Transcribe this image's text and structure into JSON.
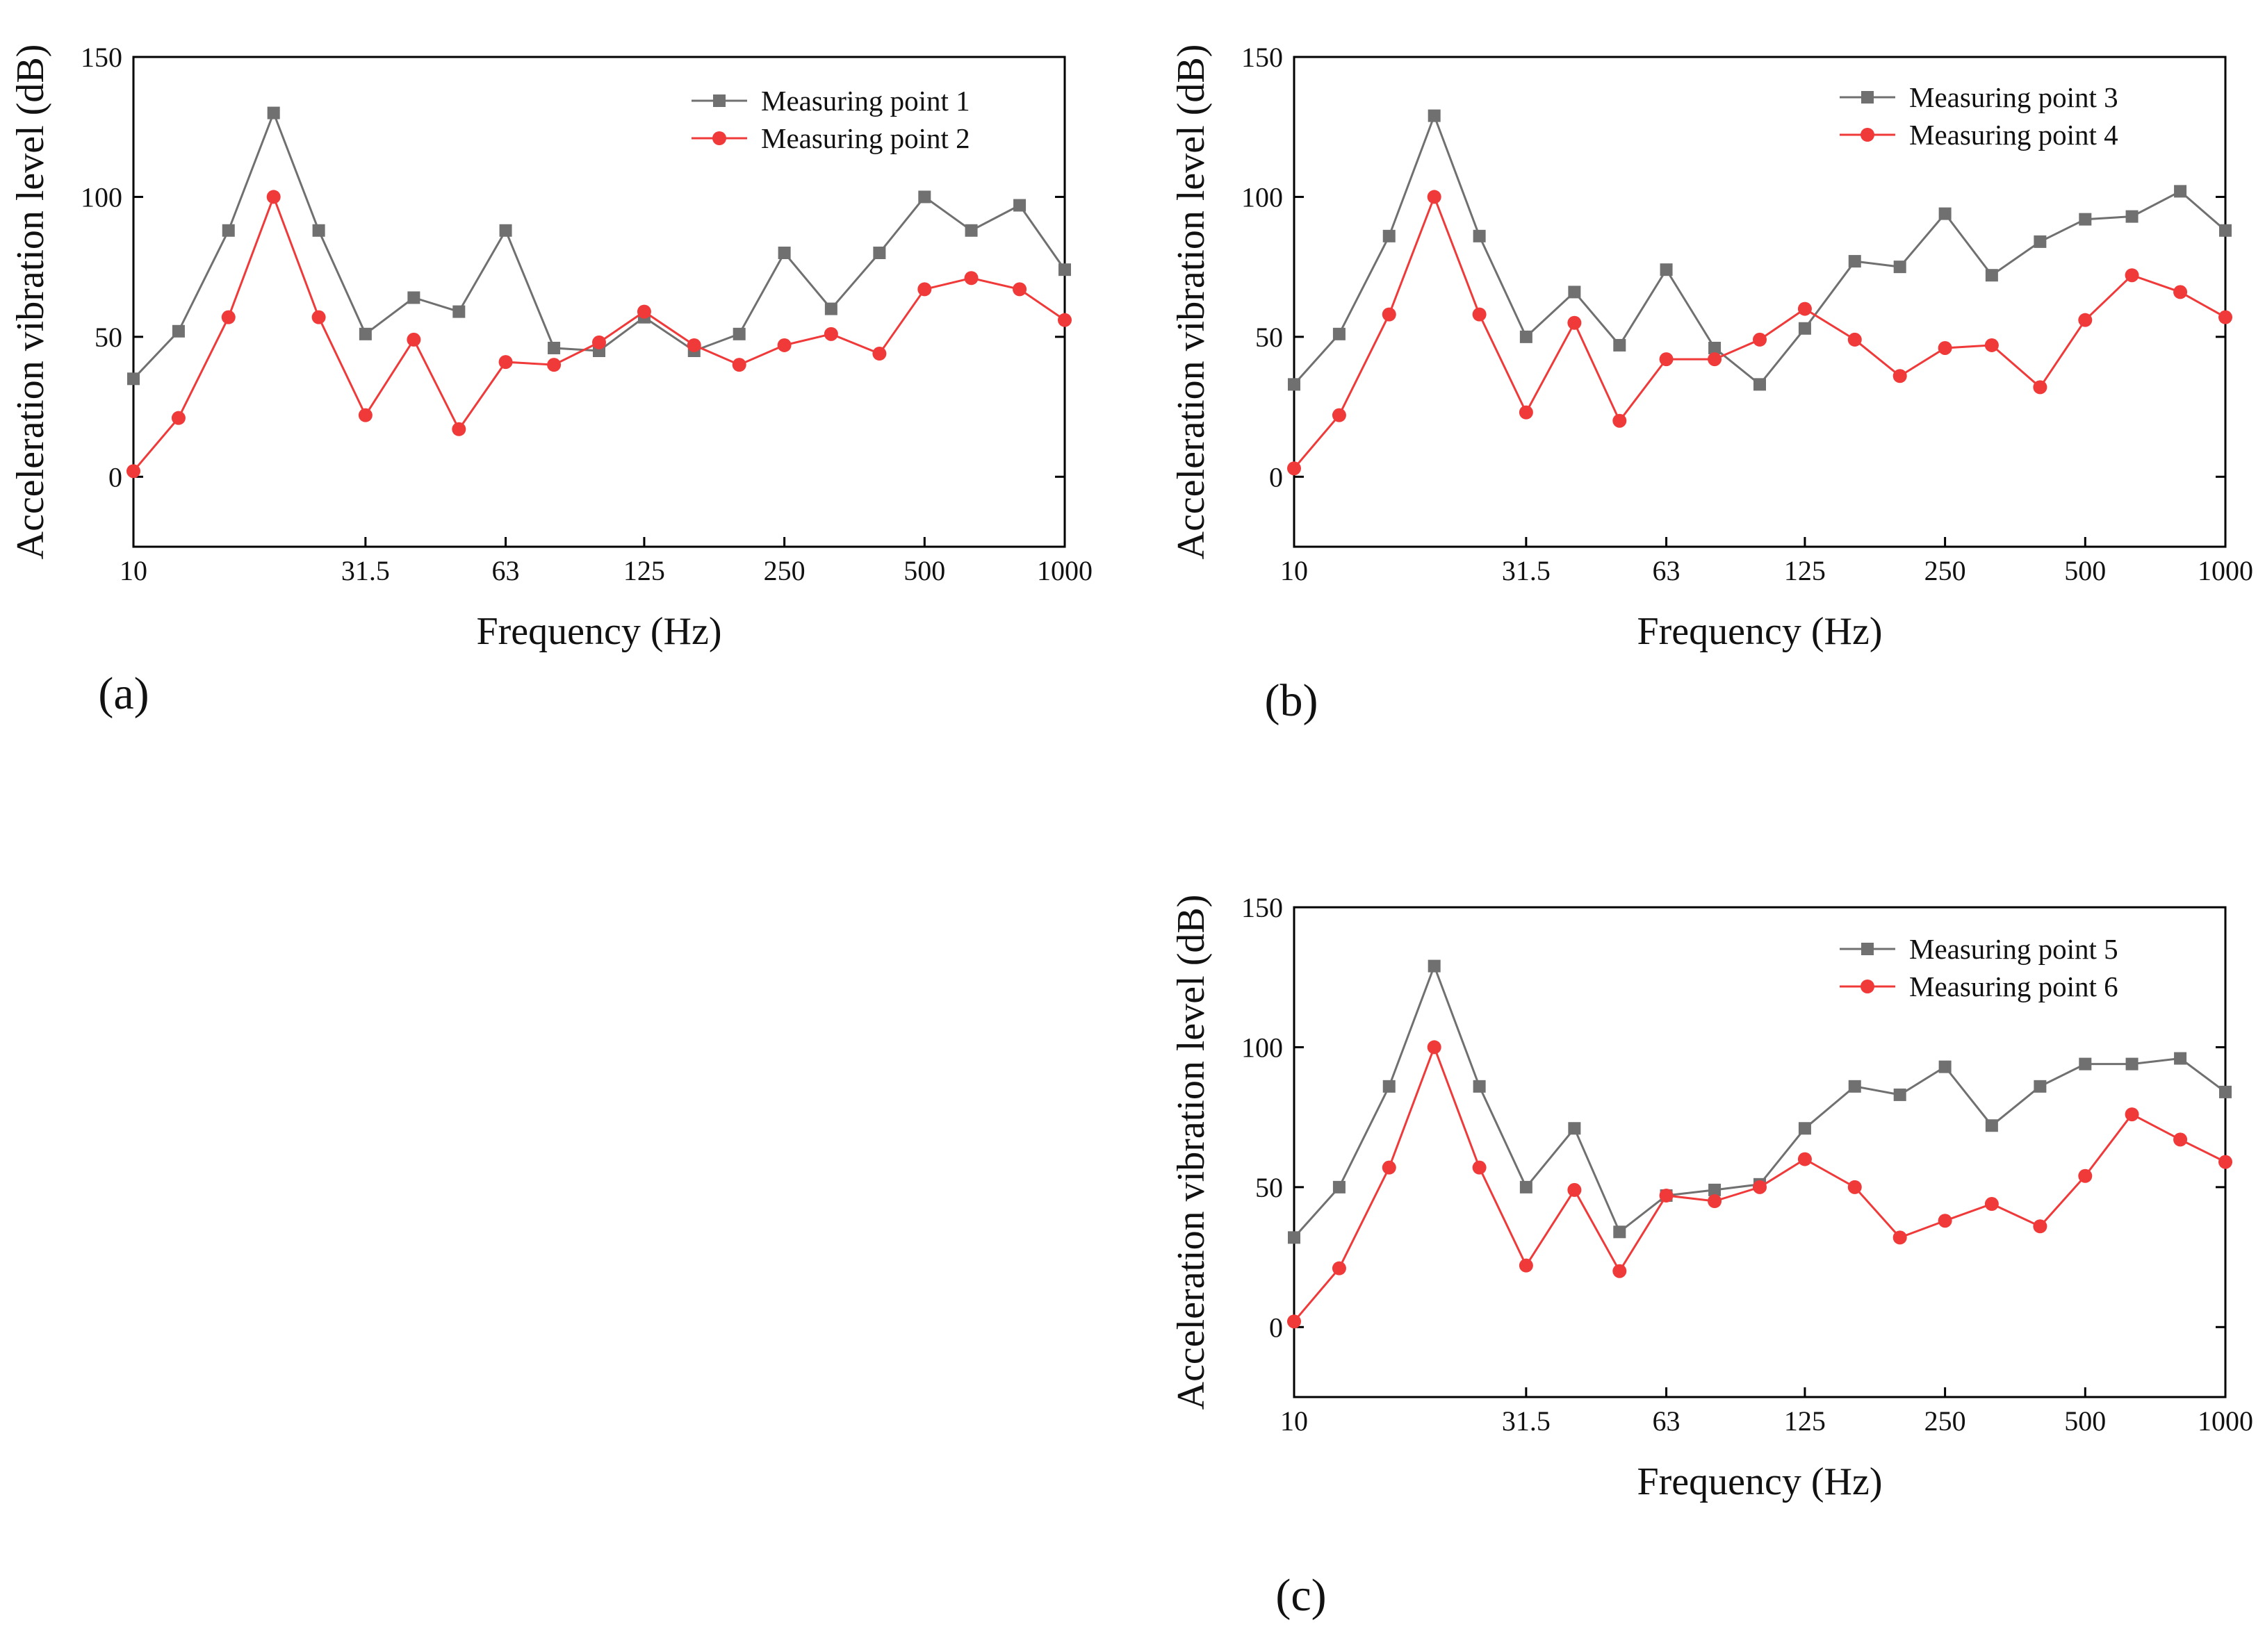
{
  "chart_data": [
    {
      "panel": "(a)",
      "type": "line",
      "xlabel": "Frequency (Hz)",
      "ylabel": "Acceleration vibration level (dB)",
      "xscale": "log",
      "xlim": [
        10,
        1000
      ],
      "ylim": [
        -25,
        150
      ],
      "yticks": [
        0,
        50,
        100,
        150
      ],
      "xticks": [
        10,
        31.5,
        63,
        125,
        250,
        500,
        1000
      ],
      "xtick_labels": [
        "10",
        "31.5",
        "63",
        "125",
        "250",
        "500",
        "1000"
      ],
      "legend_position": "top-right",
      "x": [
        10,
        12.5,
        16,
        20,
        25,
        31.5,
        40,
        50,
        63,
        80,
        100,
        125,
        160,
        200,
        250,
        315,
        400,
        500,
        630,
        800,
        1000
      ],
      "series": [
        {
          "name": "Measuring point 1",
          "color": "#707070",
          "marker": "square",
          "values": [
            35,
            52,
            88,
            130,
            88,
            51,
            64,
            59,
            88,
            46,
            45,
            57,
            45,
            51,
            80,
            60,
            80,
            100,
            88,
            97,
            74
          ]
        },
        {
          "name": "Measuring point 2",
          "color": "#f03a3a",
          "marker": "circle",
          "values": [
            2,
            21,
            57,
            100,
            57,
            22,
            49,
            17,
            41,
            40,
            48,
            59,
            47,
            40,
            47,
            51,
            44,
            67,
            71,
            67,
            56
          ]
        }
      ]
    },
    {
      "panel": "(b)",
      "type": "line",
      "xlabel": "Frequency (Hz)",
      "ylabel": "Acceleration vibration level (dB)",
      "xscale": "log",
      "xlim": [
        10,
        1000
      ],
      "ylim": [
        -25,
        150
      ],
      "yticks": [
        0,
        50,
        100,
        150
      ],
      "xticks": [
        10,
        31.5,
        63,
        125,
        250,
        500,
        1000
      ],
      "xtick_labels": [
        "10",
        "31.5",
        "63",
        "125",
        "250",
        "500",
        "1000"
      ],
      "legend_position": "top-right",
      "x": [
        10,
        12.5,
        16,
        20,
        25,
        31.5,
        40,
        50,
        63,
        80,
        100,
        125,
        160,
        200,
        250,
        315,
        400,
        500,
        630,
        800,
        1000
      ],
      "series": [
        {
          "name": "Measuring point 3",
          "color": "#707070",
          "marker": "square",
          "values": [
            33,
            51,
            86,
            129,
            86,
            50,
            66,
            47,
            74,
            46,
            33,
            53,
            77,
            75,
            94,
            72,
            84,
            92,
            93,
            102,
            88
          ]
        },
        {
          "name": "Measuring point 4",
          "color": "#f03a3a",
          "marker": "circle",
          "values": [
            3,
            22,
            58,
            100,
            58,
            23,
            55,
            20,
            42,
            42,
            49,
            60,
            49,
            36,
            46,
            47,
            32,
            56,
            72,
            66,
            57
          ]
        }
      ]
    },
    {
      "panel": "(c)",
      "type": "line",
      "xlabel": "Frequency (Hz)",
      "ylabel": "Acceleration vibration level (dB)",
      "xscale": "log",
      "xlim": [
        10,
        1000
      ],
      "ylim": [
        -25,
        150
      ],
      "yticks": [
        0,
        50,
        100,
        150
      ],
      "xticks": [
        10,
        31.5,
        63,
        125,
        250,
        500,
        1000
      ],
      "xtick_labels": [
        "10",
        "31.5",
        "63",
        "125",
        "250",
        "500",
        "1000"
      ],
      "legend_position": "top-right",
      "x": [
        10,
        12.5,
        16,
        20,
        25,
        31.5,
        40,
        50,
        63,
        80,
        100,
        125,
        160,
        200,
        250,
        315,
        400,
        500,
        630,
        800,
        1000
      ],
      "series": [
        {
          "name": "Measuring point 5",
          "color": "#707070",
          "marker": "square",
          "values": [
            32,
            50,
            86,
            129,
            86,
            50,
            71,
            34,
            47,
            49,
            51,
            71,
            86,
            83,
            93,
            72,
            86,
            94,
            94,
            96,
            84
          ]
        },
        {
          "name": "Measuring point 6",
          "color": "#f03a3a",
          "marker": "circle",
          "values": [
            2,
            21,
            57,
            100,
            57,
            22,
            49,
            20,
            47,
            45,
            50,
            60,
            50,
            32,
            38,
            44,
            36,
            54,
            76,
            67,
            59
          ]
        }
      ]
    }
  ]
}
